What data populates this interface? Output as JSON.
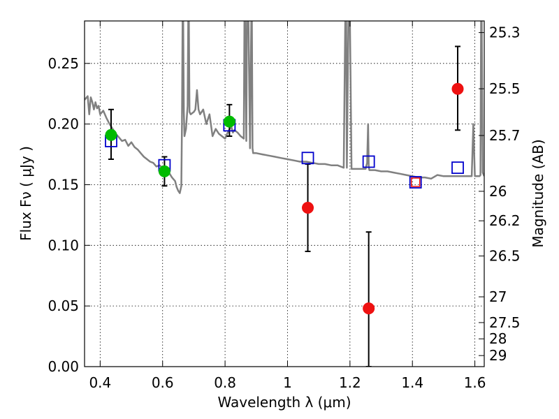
{
  "chart_data": {
    "type": "scatter",
    "title": "",
    "xlabel": "Wavelength  λ (μm)",
    "ylabel": "Flux  Fν  ( μJy )",
    "y2label": "Magnitude (AB)",
    "xlim": [
      0.35,
      1.63
    ],
    "ylim": [
      0.0,
      0.285
    ],
    "grid": true,
    "x_ticks": [
      0.4,
      0.6,
      0.8,
      1.0,
      1.2,
      1.4,
      1.6
    ],
    "x_tick_labels": [
      "0.4",
      "0.6",
      "0.8",
      "1",
      "1.2",
      "1.4",
      "1.6"
    ],
    "y_ticks": [
      0.0,
      0.05,
      0.1,
      0.15,
      0.2,
      0.25
    ],
    "y_tick_labels": [
      "0.00",
      "0.05",
      "0.10",
      "0.15",
      "0.20",
      "0.25"
    ],
    "y2_ticks": [
      25.3,
      25.5,
      25.7,
      26,
      26.2,
      26.5,
      27,
      27.5,
      28,
      29
    ],
    "y2_tick_labels": [
      "25.3",
      "25.5",
      "25.7",
      "26",
      "26.2",
      "26.5",
      "27",
      "27.5",
      "28",
      "29"
    ],
    "colors": {
      "model_line": "#808080",
      "model_points": "#0000cc",
      "detections_green": "#00bb00",
      "detections_red": "#ee1111",
      "error_bars": "#000000"
    },
    "model_points": {
      "x": [
        0.435,
        0.606,
        0.814,
        1.065,
        1.26,
        1.41,
        1.545
      ],
      "y": [
        0.186,
        0.166,
        0.199,
        0.172,
        0.169,
        0.152,
        0.164
      ]
    },
    "green_points": {
      "x": [
        0.435,
        0.606,
        0.814
      ],
      "y": [
        0.191,
        0.161,
        0.202
      ],
      "err_low": [
        0.171,
        0.149,
        0.19
      ],
      "err_high": [
        0.212,
        0.173,
        0.216
      ]
    },
    "red_points": {
      "x": [
        1.065,
        1.26,
        1.41,
        1.545
      ],
      "y": [
        0.131,
        0.048,
        0.152,
        0.229
      ],
      "err_low": [
        0.095,
        0.0,
        null,
        0.195
      ],
      "err_high": [
        0.167,
        0.111,
        null,
        0.264
      ]
    },
    "model_spectrum": {
      "x": [
        0.35,
        0.36,
        0.365,
        0.37,
        0.375,
        0.38,
        0.385,
        0.39,
        0.395,
        0.4,
        0.41,
        0.42,
        0.43,
        0.44,
        0.45,
        0.46,
        0.47,
        0.48,
        0.49,
        0.5,
        0.51,
        0.52,
        0.53,
        0.54,
        0.55,
        0.56,
        0.57,
        0.58,
        0.59,
        0.6,
        0.61,
        0.62,
        0.63,
        0.64,
        0.645,
        0.65,
        0.655,
        0.66,
        0.662,
        0.664,
        0.666,
        0.668,
        0.67,
        0.675,
        0.68,
        0.682,
        0.684,
        0.686,
        0.69,
        0.7,
        0.705,
        0.71,
        0.715,
        0.72,
        0.73,
        0.74,
        0.75,
        0.76,
        0.77,
        0.78,
        0.79,
        0.8,
        0.81,
        0.82,
        0.825,
        0.83,
        0.84,
        0.85,
        0.86,
        0.862,
        0.864,
        0.868,
        0.87,
        0.875,
        0.88,
        0.884,
        0.886,
        0.888,
        0.89,
        0.9,
        0.92,
        0.94,
        0.96,
        0.98,
        1.0,
        1.02,
        1.04,
        1.06,
        1.08,
        1.1,
        1.12,
        1.14,
        1.16,
        1.18,
        1.185,
        1.188,
        1.19,
        1.195,
        1.2,
        1.205,
        1.21,
        1.22,
        1.24,
        1.25,
        1.255,
        1.258,
        1.26,
        1.262,
        1.265,
        1.28,
        1.3,
        1.32,
        1.34,
        1.36,
        1.38,
        1.4,
        1.42,
        1.44,
        1.46,
        1.48,
        1.5,
        1.52,
        1.54,
        1.56,
        1.58,
        1.59,
        1.595,
        1.598,
        1.6,
        1.602,
        1.605,
        1.61,
        1.615,
        1.618,
        1.62,
        1.622,
        1.625,
        1.63
      ],
      "y": [
        0.22,
        0.223,
        0.208,
        0.222,
        0.218,
        0.212,
        0.218,
        0.213,
        0.215,
        0.208,
        0.211,
        0.205,
        0.2,
        0.196,
        0.192,
        0.189,
        0.186,
        0.187,
        0.182,
        0.185,
        0.181,
        0.179,
        0.176,
        0.173,
        0.171,
        0.169,
        0.168,
        0.165,
        0.166,
        0.164,
        0.162,
        0.16,
        0.156,
        0.153,
        0.148,
        0.145,
        0.143,
        0.149,
        0.2,
        0.285,
        0.285,
        0.21,
        0.19,
        0.196,
        0.215,
        0.285,
        0.285,
        0.21,
        0.208,
        0.21,
        0.212,
        0.228,
        0.212,
        0.208,
        0.212,
        0.2,
        0.208,
        0.19,
        0.196,
        0.192,
        0.19,
        0.188,
        0.194,
        0.198,
        0.193,
        0.195,
        0.193,
        0.19,
        0.188,
        0.285,
        0.285,
        0.186,
        0.285,
        0.285,
        0.18,
        0.285,
        0.285,
        0.18,
        0.176,
        0.176,
        0.175,
        0.174,
        0.173,
        0.172,
        0.171,
        0.17,
        0.169,
        0.169,
        0.168,
        0.167,
        0.167,
        0.166,
        0.166,
        0.164,
        0.285,
        0.285,
        0.164,
        0.285,
        0.285,
        0.163,
        0.163,
        0.163,
        0.163,
        0.163,
        0.168,
        0.2,
        0.165,
        0.162,
        0.162,
        0.162,
        0.161,
        0.161,
        0.16,
        0.159,
        0.158,
        0.157,
        0.156,
        0.156,
        0.155,
        0.158,
        0.157,
        0.157,
        0.157,
        0.157,
        0.157,
        0.157,
        0.2,
        0.175,
        0.157,
        0.157,
        0.157,
        0.157,
        0.157,
        0.158,
        0.285,
        0.285,
        0.16,
        0.157
      ]
    }
  }
}
